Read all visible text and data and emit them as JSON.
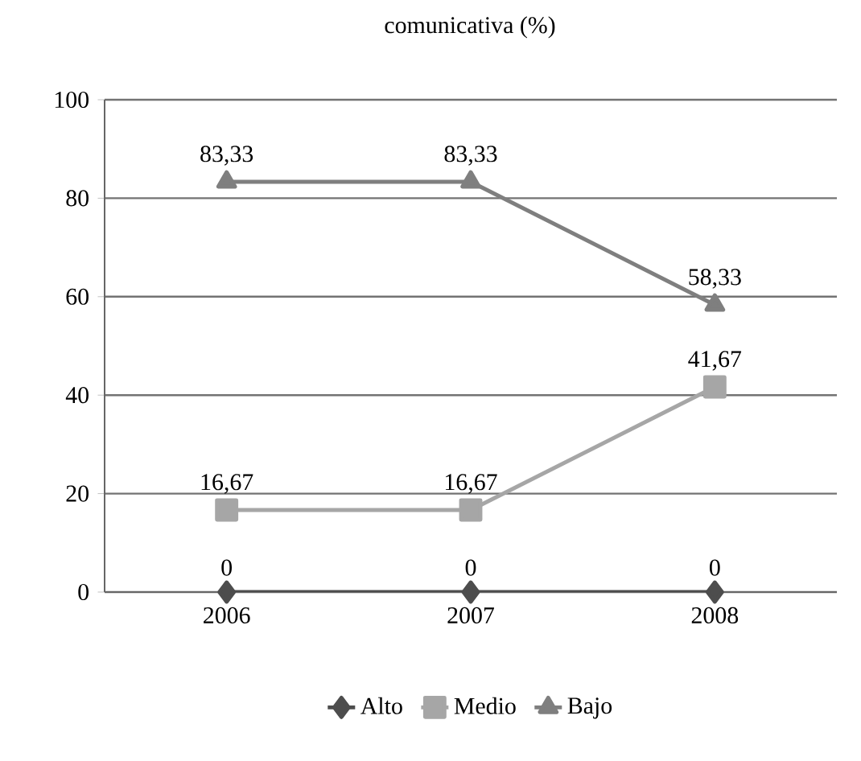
{
  "chart_data": {
    "type": "line",
    "title": "comunicativa (%)",
    "categories": [
      "2006",
      "2007",
      "2008"
    ],
    "series": [
      {
        "name": "Alto",
        "color": "#4d4d4d",
        "values": [
          0,
          0,
          0
        ],
        "marker": "diamond",
        "value_labels": [
          "0",
          "0",
          "0"
        ]
      },
      {
        "name": "Medio",
        "color": "#a6a6a6",
        "values": [
          16.67,
          16.67,
          41.67
        ],
        "marker": "square",
        "value_labels": [
          "16,67",
          "16,67",
          "41,67"
        ]
      },
      {
        "name": "Bajo",
        "color": "#7f7f7f",
        "values": [
          83.33,
          83.33,
          58.33
        ],
        "marker": "triangle",
        "value_labels": [
          "83,33",
          "83,33",
          "58,33"
        ]
      }
    ],
    "ylim": [
      0,
      100
    ],
    "yticks": [
      0,
      20,
      40,
      60,
      80,
      100
    ],
    "grid": "y",
    "legend": "bottom"
  }
}
